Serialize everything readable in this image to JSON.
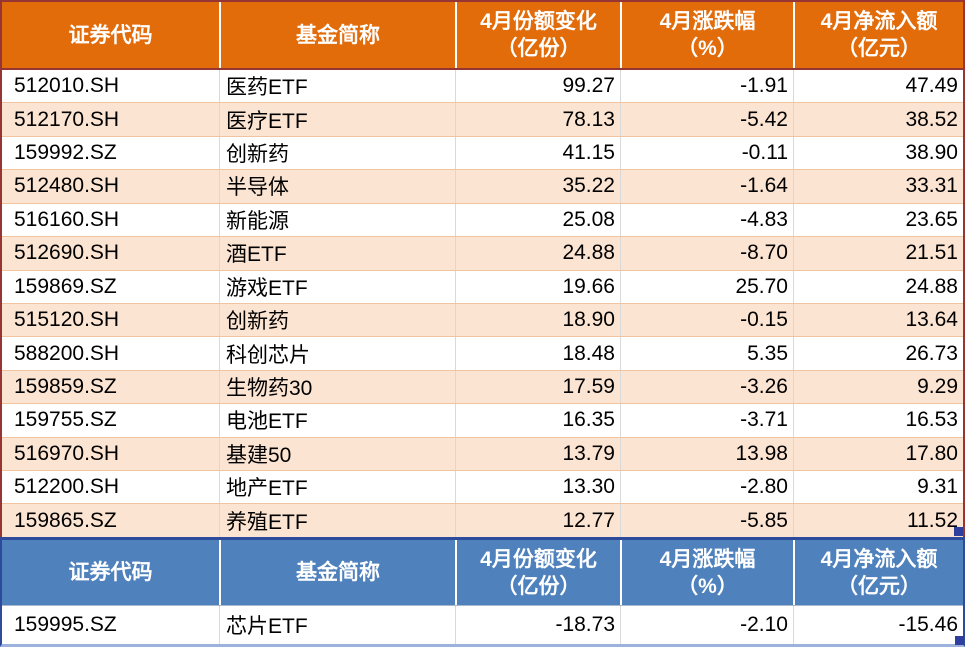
{
  "headers": {
    "col1": "证券代码",
    "col2": "基金简称",
    "col3_line1": "4月份额变化",
    "col3_line2": "（亿份）",
    "col4_line1": "4月涨跌幅",
    "col4_line2": "（%）",
    "col5_line1": "4月净流入额",
    "col5_line2": "（亿元）"
  },
  "colors": {
    "header_orange": "#E26B0A",
    "header_blue": "#4F81BD",
    "row_peach": "#FCE4D2",
    "row_white": "#FFFFFF",
    "border_maroon": "#963634",
    "border_navy": "#2D4B9A",
    "border_bottom_blue": "#9BB2DC",
    "grid_gray": "#D9D9D9",
    "grid_peachline": "#F0C49E",
    "handle_navy": "#2F3F9D",
    "text_black": "#000000",
    "text_white": "#FFFFFF"
  },
  "chart_data": {
    "type": "table",
    "columns": [
      "证券代码",
      "基金简称",
      "4月份额变化（亿份）",
      "4月涨跌幅（%）",
      "4月净流入额（亿元）"
    ],
    "sections": [
      {
        "name": "inflow-section",
        "header_style": "orange",
        "rows": [
          {
            "code": "512010.SH",
            "name": "医药ETF",
            "share_change": "99.27",
            "pct_change": "-1.91",
            "net_inflow": "47.49"
          },
          {
            "code": "512170.SH",
            "name": "医疗ETF",
            "share_change": "78.13",
            "pct_change": "-5.42",
            "net_inflow": "38.52"
          },
          {
            "code": "159992.SZ",
            "name": "创新药",
            "share_change": "41.15",
            "pct_change": "-0.11",
            "net_inflow": "38.90"
          },
          {
            "code": "512480.SH",
            "name": "半导体",
            "share_change": "35.22",
            "pct_change": "-1.64",
            "net_inflow": "33.31"
          },
          {
            "code": "516160.SH",
            "name": "新能源",
            "share_change": "25.08",
            "pct_change": "-4.83",
            "net_inflow": "23.65"
          },
          {
            "code": "512690.SH",
            "name": "酒ETF",
            "share_change": "24.88",
            "pct_change": "-8.70",
            "net_inflow": "21.51"
          },
          {
            "code": "159869.SZ",
            "name": "游戏ETF",
            "share_change": "19.66",
            "pct_change": "25.70",
            "net_inflow": "24.88"
          },
          {
            "code": "515120.SH",
            "name": "创新药",
            "share_change": "18.90",
            "pct_change": "-0.15",
            "net_inflow": "13.64"
          },
          {
            "code": "588200.SH",
            "name": "科创芯片",
            "share_change": "18.48",
            "pct_change": "5.35",
            "net_inflow": "26.73"
          },
          {
            "code": "159859.SZ",
            "name": "生物药30",
            "share_change": "17.59",
            "pct_change": "-3.26",
            "net_inflow": "9.29"
          },
          {
            "code": "159755.SZ",
            "name": "电池ETF",
            "share_change": "16.35",
            "pct_change": "-3.71",
            "net_inflow": "16.53"
          },
          {
            "code": "516970.SH",
            "name": "基建50",
            "share_change": "13.79",
            "pct_change": "13.98",
            "net_inflow": "17.80"
          },
          {
            "code": "512200.SH",
            "name": "地产ETF",
            "share_change": "13.30",
            "pct_change": "-2.80",
            "net_inflow": "9.31"
          },
          {
            "code": "159865.SZ",
            "name": "养殖ETF",
            "share_change": "12.77",
            "pct_change": "-5.85",
            "net_inflow": "11.52"
          }
        ]
      },
      {
        "name": "outflow-section",
        "header_style": "blue",
        "rows": [
          {
            "code": "159995.SZ",
            "name": "芯片ETF",
            "share_change": "-18.73",
            "pct_change": "-2.10",
            "net_inflow": "-15.46"
          }
        ]
      }
    ]
  }
}
